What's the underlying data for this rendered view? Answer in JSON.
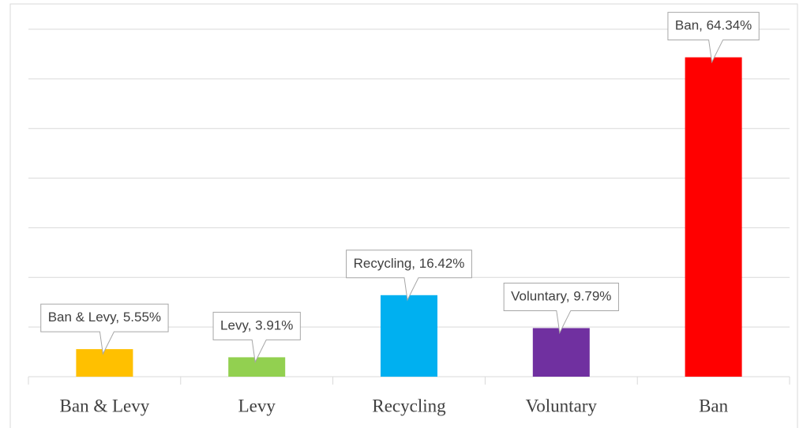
{
  "chart_data": {
    "type": "bar",
    "categories": [
      "Ban & Levy",
      "Levy",
      "Recycling",
      "Voluntary",
      "Ban"
    ],
    "values": [
      5.55,
      3.91,
      16.42,
      9.79,
      64.34
    ],
    "value_labels": [
      "Ban & Levy, 5.55%",
      "Levy, 3.91%",
      "Recycling, 16.42%",
      "Voluntary, 9.79%",
      "Ban, 64.34%"
    ],
    "colors": [
      "#ffc000",
      "#92d050",
      "#00b0f0",
      "#7030a0",
      "#ff0000"
    ],
    "ylim": [
      0,
      70
    ],
    "yticks": [
      0,
      10,
      20,
      30,
      40,
      50,
      60,
      70
    ],
    "grid": true
  }
}
